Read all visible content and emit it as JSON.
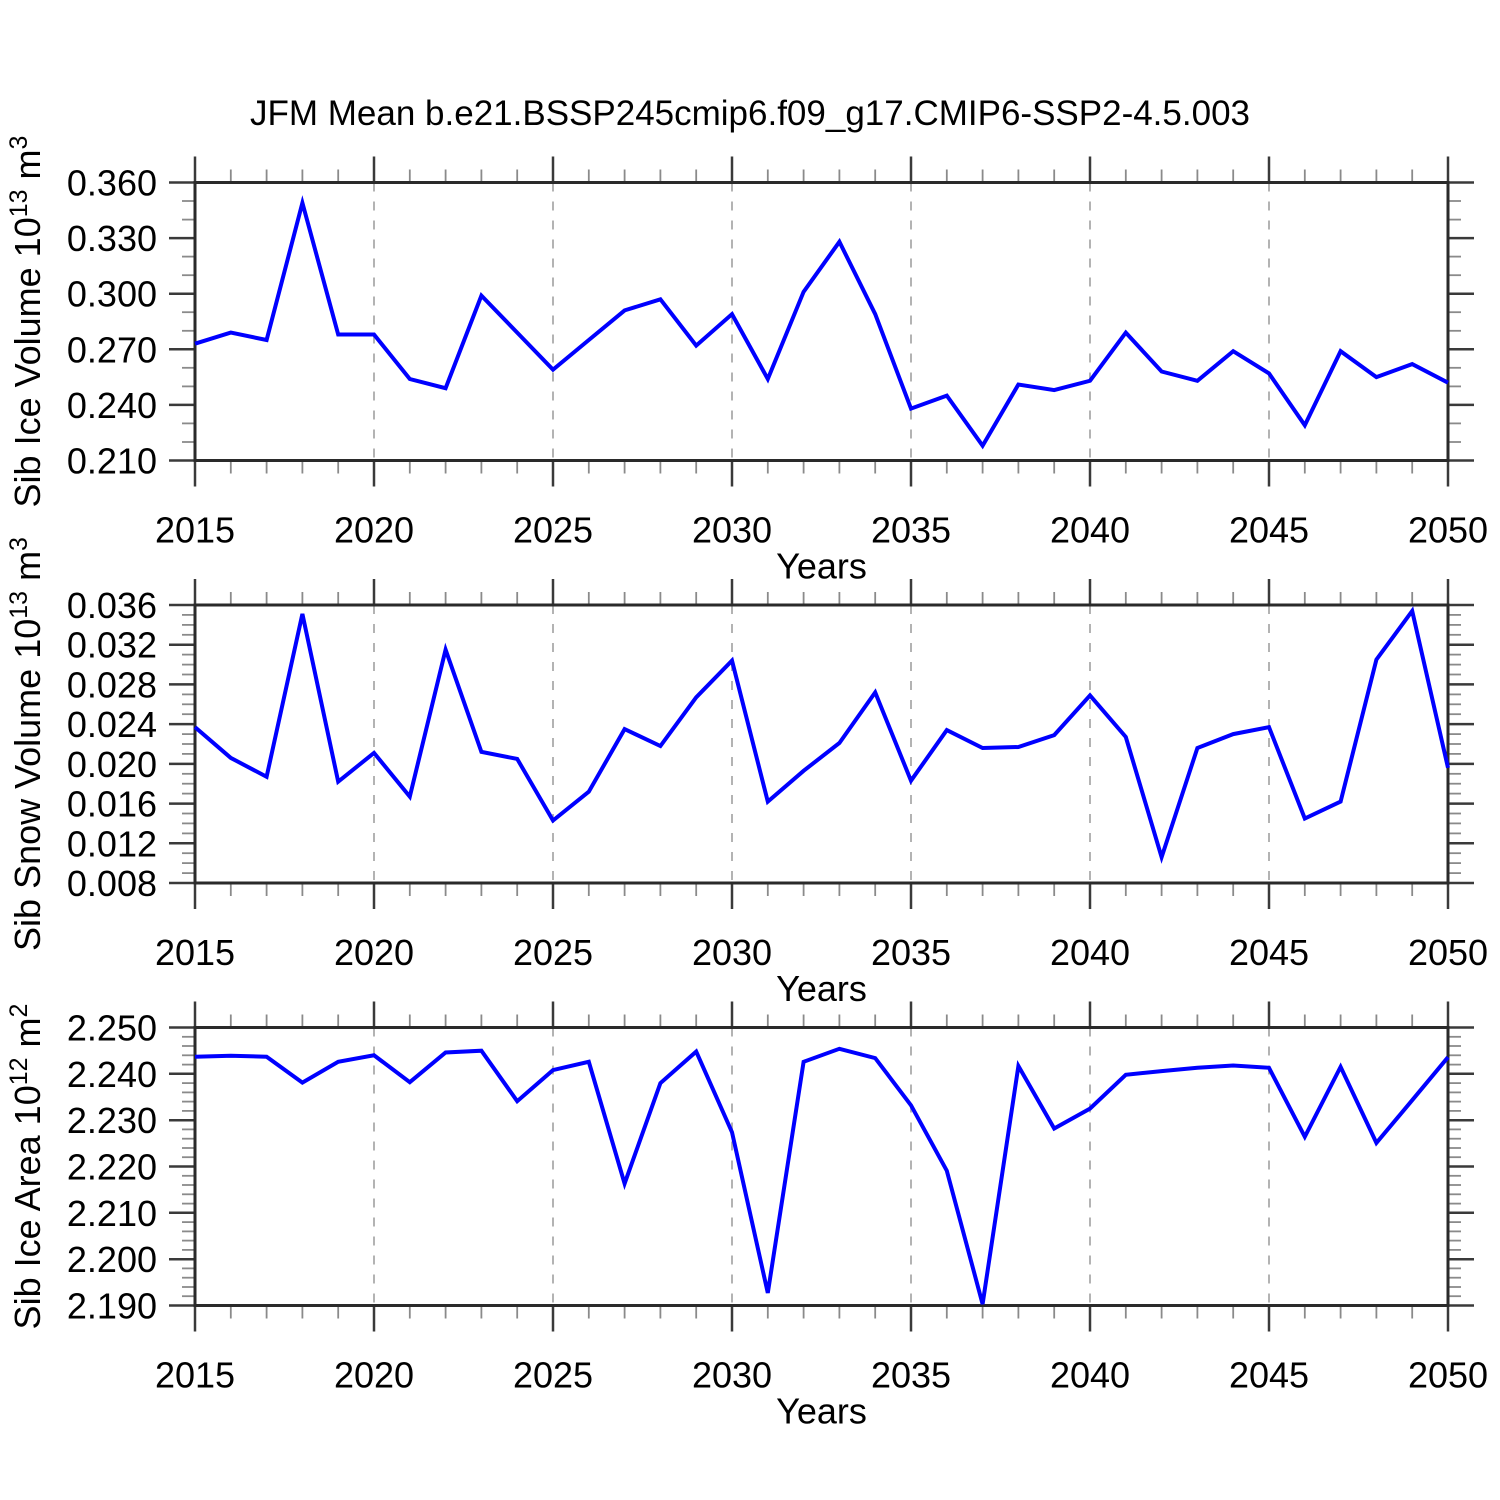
{
  "title": "JFM Mean b.e21.BSSP245cmip6.f09_g17.CMIP6-SSP2-4.5.003",
  "style": {
    "line_color": "#0000ff",
    "grid_color": "#b3b3b3",
    "frame_color": "#2a2a2a",
    "major_tick_color": "#3a3a3a",
    "minor_tick_color": "#8a8a8a",
    "text_color": "#000000"
  },
  "chart_data": [
    {
      "type": "line",
      "name": "sib-ice-volume",
      "ylabel_plain": "Sib Ice Volume 10^13 m^3",
      "ylabel_segments": [
        {
          "t": "Sib Ice Volume 10"
        },
        {
          "t": "13",
          "sup": true
        },
        {
          "t": " m"
        },
        {
          "t": "3",
          "sup": true
        }
      ],
      "xlabel": "Years",
      "xlim": [
        2015,
        2050
      ],
      "ylim": [
        0.21,
        0.36
      ],
      "yticks": [
        {
          "v": 0.21,
          "label": "0.210"
        },
        {
          "v": 0.24,
          "label": "0.240"
        },
        {
          "v": 0.27,
          "label": "0.270"
        },
        {
          "v": 0.3,
          "label": "0.300"
        },
        {
          "v": 0.33,
          "label": "0.330"
        },
        {
          "v": 0.36,
          "label": "0.360"
        }
      ],
      "yminor_step": 0.01,
      "xticks_major": [
        2015,
        2020,
        2025,
        2030,
        2035,
        2040,
        2045,
        2050
      ],
      "xtick_labels": [
        "2015",
        "2020",
        "2025",
        "2030",
        "2035",
        "2040",
        "2045",
        "2050"
      ],
      "xminor_step": 1,
      "grid_years": [
        2020,
        2025,
        2030,
        2035,
        2040,
        2045
      ],
      "x": [
        2015,
        2016,
        2017,
        2018,
        2019,
        2020,
        2021,
        2022,
        2023,
        2024,
        2025,
        2026,
        2027,
        2028,
        2029,
        2030,
        2031,
        2032,
        2033,
        2034,
        2035,
        2036,
        2037,
        2038,
        2039,
        2040,
        2041,
        2042,
        2043,
        2044,
        2045,
        2046,
        2047,
        2048,
        2049,
        2050
      ],
      "values": [
        0.273,
        0.279,
        0.275,
        0.349,
        0.278,
        0.278,
        0.254,
        0.249,
        0.299,
        0.279,
        0.259,
        0.275,
        0.291,
        0.297,
        0.272,
        0.289,
        0.254,
        0.301,
        0.328,
        0.289,
        0.238,
        0.245,
        0.218,
        0.251,
        0.248,
        0.253,
        0.279,
        0.258,
        0.253,
        0.269,
        0.257,
        0.229,
        0.269,
        0.255,
        0.262,
        0.252
      ]
    },
    {
      "type": "line",
      "name": "sib-snow-volume",
      "ylabel_plain": "Sib Snow Volume 10^13 m^3",
      "ylabel_segments": [
        {
          "t": "Sib Snow Volume 10"
        },
        {
          "t": "13",
          "sup": true
        },
        {
          "t": " m"
        },
        {
          "t": "3",
          "sup": true
        }
      ],
      "xlabel": "Years",
      "xlim": [
        2015,
        2050
      ],
      "ylim": [
        0.008,
        0.036
      ],
      "yticks": [
        {
          "v": 0.008,
          "label": "0.008"
        },
        {
          "v": 0.012,
          "label": "0.012"
        },
        {
          "v": 0.016,
          "label": "0.016"
        },
        {
          "v": 0.02,
          "label": "0.020"
        },
        {
          "v": 0.024,
          "label": "0.024"
        },
        {
          "v": 0.028,
          "label": "0.028"
        },
        {
          "v": 0.032,
          "label": "0.032"
        },
        {
          "v": 0.036,
          "label": "0.036"
        }
      ],
      "yminor_step": 0.001,
      "xticks_major": [
        2015,
        2020,
        2025,
        2030,
        2035,
        2040,
        2045,
        2050
      ],
      "xtick_labels": [
        "2015",
        "2020",
        "2025",
        "2030",
        "2035",
        "2040",
        "2045",
        "2050"
      ],
      "xminor_step": 1,
      "grid_years": [
        2020,
        2025,
        2030,
        2035,
        2040,
        2045
      ],
      "x": [
        2015,
        2016,
        2017,
        2018,
        2019,
        2020,
        2021,
        2022,
        2023,
        2024,
        2025,
        2026,
        2027,
        2028,
        2029,
        2030,
        2031,
        2032,
        2033,
        2034,
        2035,
        2036,
        2037,
        2038,
        2039,
        2040,
        2041,
        2042,
        2043,
        2044,
        2045,
        2046,
        2047,
        2048,
        2049,
        2050
      ],
      "values": [
        0.0237,
        0.0206,
        0.0187,
        0.0351,
        0.0182,
        0.0211,
        0.0167,
        0.0315,
        0.0212,
        0.0205,
        0.0143,
        0.0172,
        0.0235,
        0.0218,
        0.0267,
        0.0304,
        0.0162,
        0.0193,
        0.0221,
        0.0272,
        0.0183,
        0.0234,
        0.0216,
        0.0217,
        0.0229,
        0.0269,
        0.0227,
        0.0106,
        0.0216,
        0.023,
        0.0237,
        0.0145,
        0.0162,
        0.0305,
        0.0354,
        0.0196
      ]
    },
    {
      "type": "line",
      "name": "sib-ice-area",
      "ylabel_plain": "Sib Ice Area 10^12 m^2",
      "ylabel_segments": [
        {
          "t": "Sib Ice Area 10"
        },
        {
          "t": "12",
          "sup": true
        },
        {
          "t": " m"
        },
        {
          "t": "2",
          "sup": true
        }
      ],
      "xlabel": "Years",
      "xlim": [
        2015,
        2050
      ],
      "ylim": [
        2.19,
        2.25
      ],
      "yticks": [
        {
          "v": 2.19,
          "label": "2.190"
        },
        {
          "v": 2.2,
          "label": "2.200"
        },
        {
          "v": 2.21,
          "label": "2.210"
        },
        {
          "v": 2.22,
          "label": "2.220"
        },
        {
          "v": 2.23,
          "label": "2.230"
        },
        {
          "v": 2.24,
          "label": "2.240"
        },
        {
          "v": 2.25,
          "label": "2.250"
        }
      ],
      "yminor_step": 0.002,
      "xticks_major": [
        2015,
        2020,
        2025,
        2030,
        2035,
        2040,
        2045,
        2050
      ],
      "xtick_labels": [
        "2015",
        "2020",
        "2025",
        "2030",
        "2035",
        "2040",
        "2045",
        "2050"
      ],
      "xminor_step": 1,
      "grid_years": [
        2020,
        2025,
        2030,
        2035,
        2040,
        2045
      ],
      "x": [
        2015,
        2016,
        2017,
        2018,
        2019,
        2020,
        2021,
        2022,
        2023,
        2024,
        2025,
        2026,
        2027,
        2028,
        2029,
        2030,
        2031,
        2032,
        2033,
        2034,
        2035,
        2036,
        2037,
        2038,
        2039,
        2040,
        2041,
        2042,
        2043,
        2044,
        2045,
        2046,
        2047,
        2048,
        2049,
        2050
      ],
      "values": [
        2.2437,
        2.2439,
        2.2437,
        2.2381,
        2.2426,
        2.244,
        2.2382,
        2.2446,
        2.245,
        2.2341,
        2.2408,
        2.2426,
        2.2163,
        2.238,
        2.2448,
        2.2274,
        2.1927,
        2.2426,
        2.2454,
        2.2434,
        2.2332,
        2.2191,
        2.1903,
        2.2417,
        2.2282,
        2.2325,
        2.2398,
        2.2406,
        2.2413,
        2.2418,
        2.2413,
        2.2264,
        2.2415,
        2.2251,
        2.2343,
        2.2436
      ]
    }
  ]
}
